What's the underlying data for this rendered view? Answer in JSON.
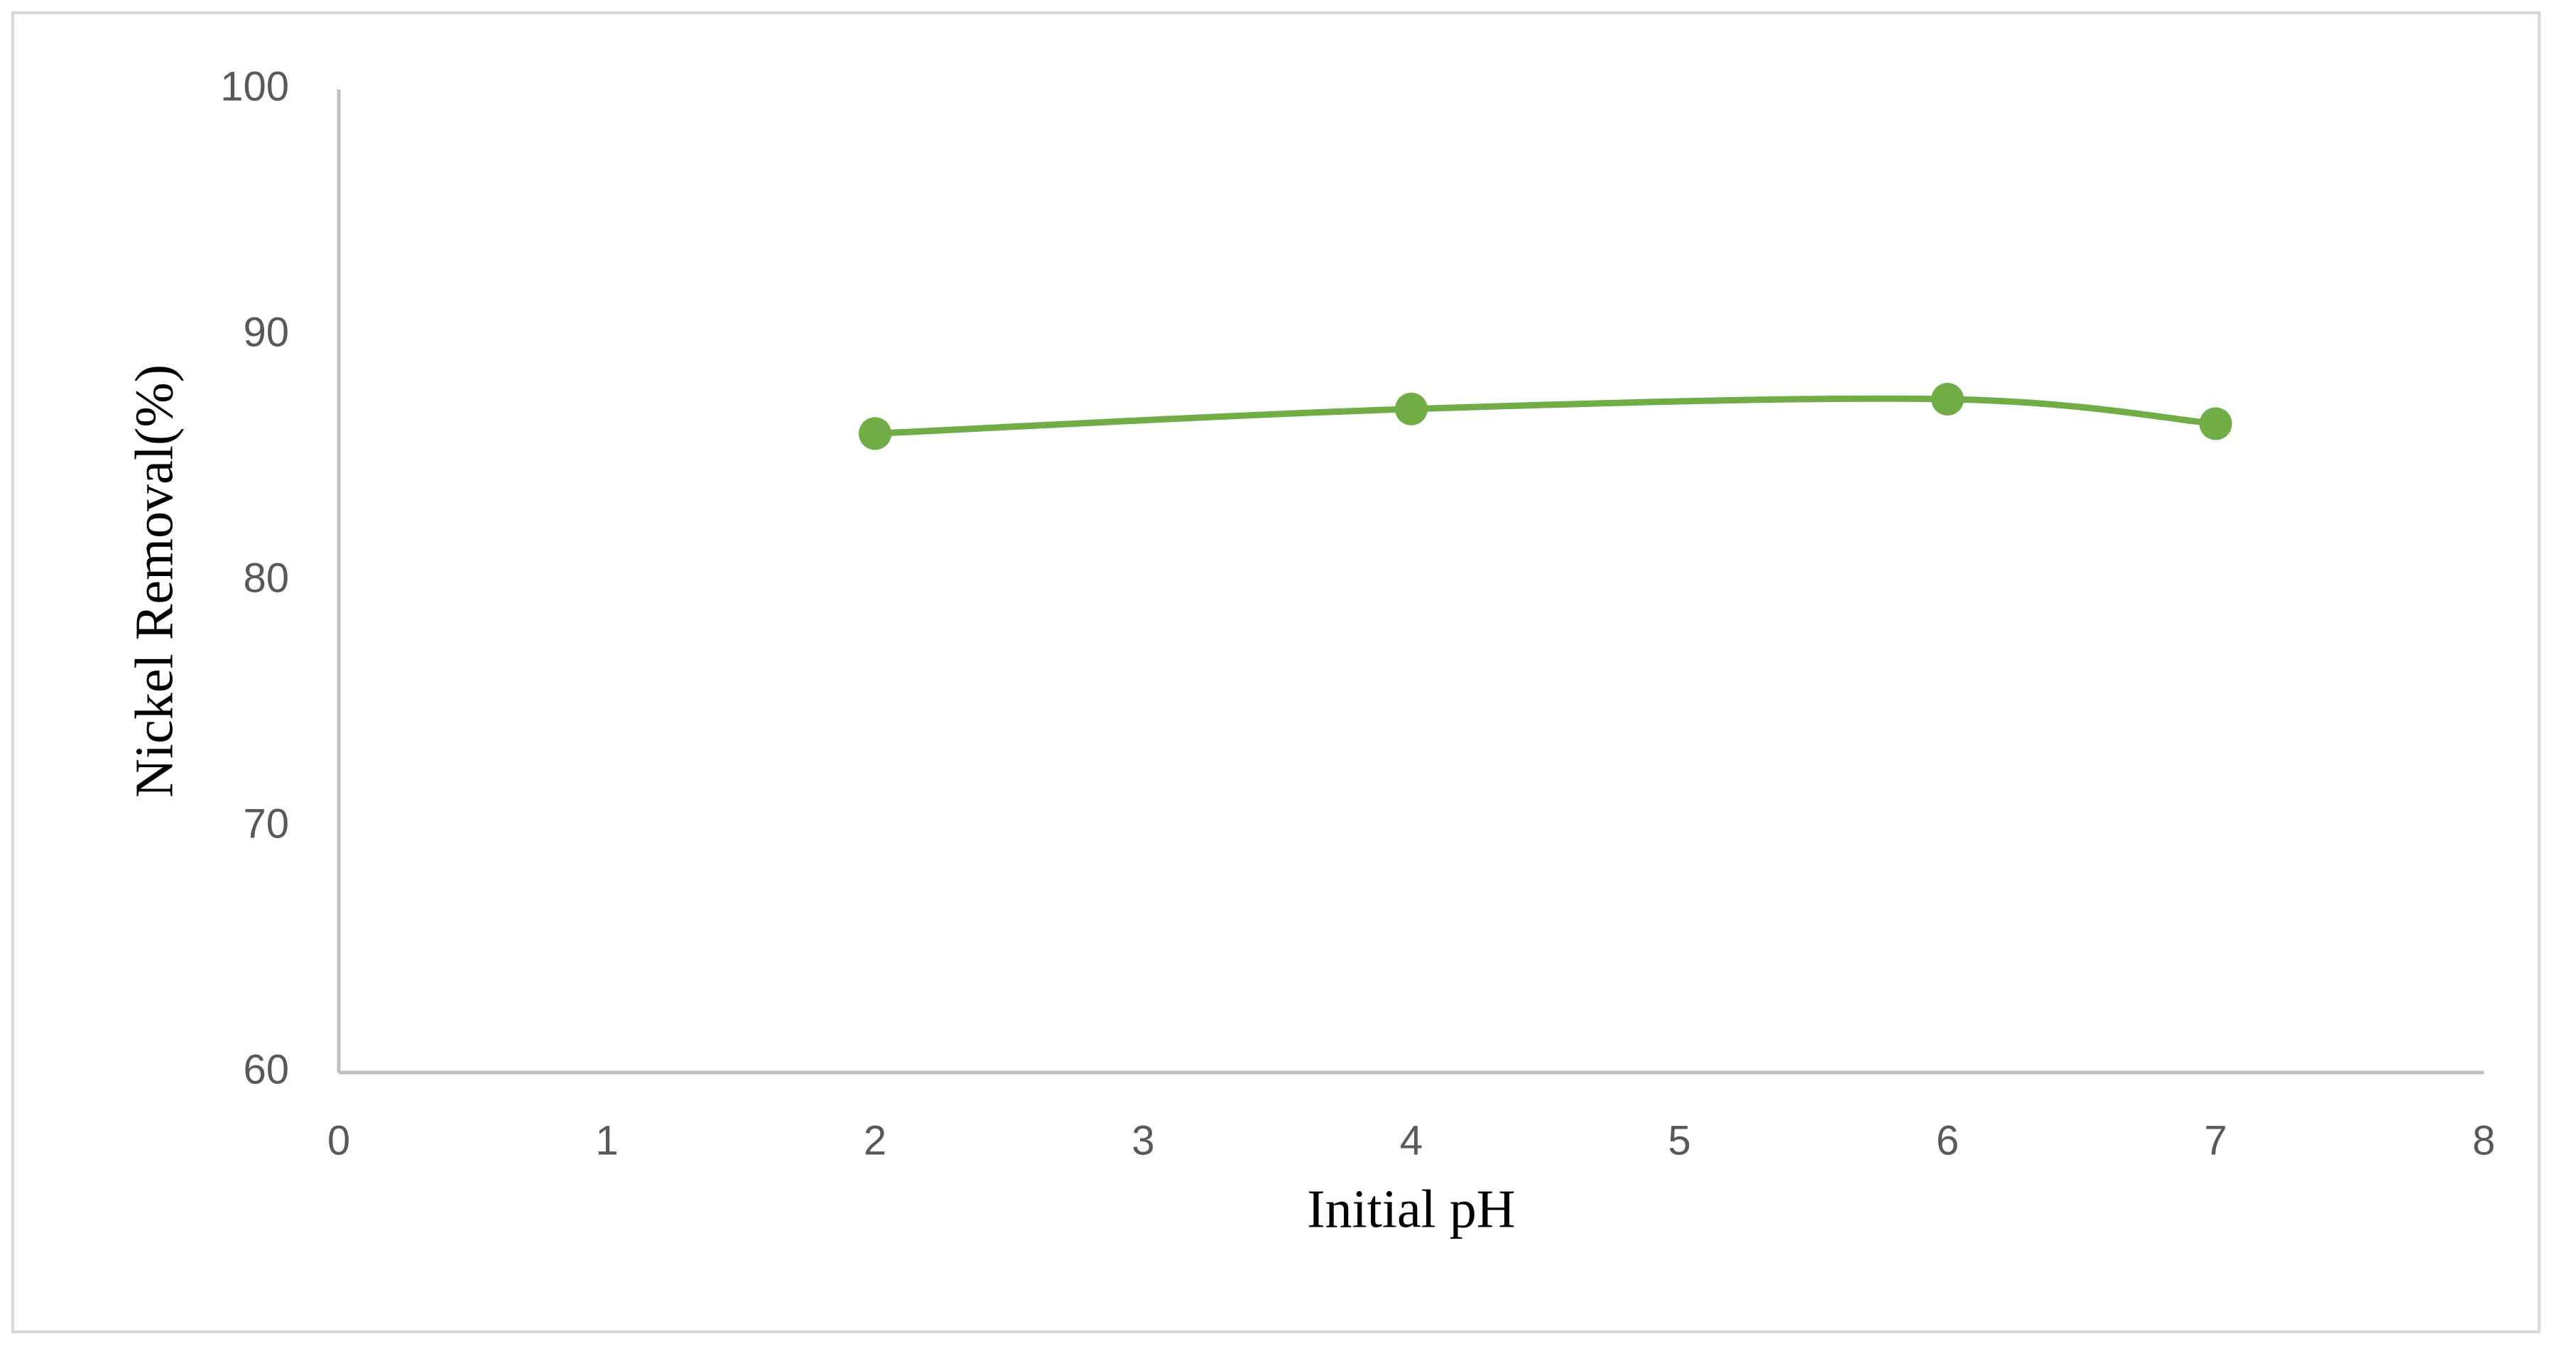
{
  "chart_data": {
    "type": "line",
    "x_label": "Initial pH",
    "y_label": "Nickel Removal(%)",
    "x": [
      2,
      4,
      6,
      7
    ],
    "series": [
      {
        "color": "#70ad47",
        "values": [
          86,
          87,
          87.4,
          86.4
        ]
      }
    ],
    "xlim": [
      0,
      8
    ],
    "xticks": [
      0,
      1,
      2,
      3,
      4,
      5,
      6,
      7,
      8
    ],
    "ylim": [
      60,
      100
    ],
    "yticks": [
      60,
      70,
      80,
      90,
      100
    ],
    "smooth": true,
    "markers": true
  }
}
